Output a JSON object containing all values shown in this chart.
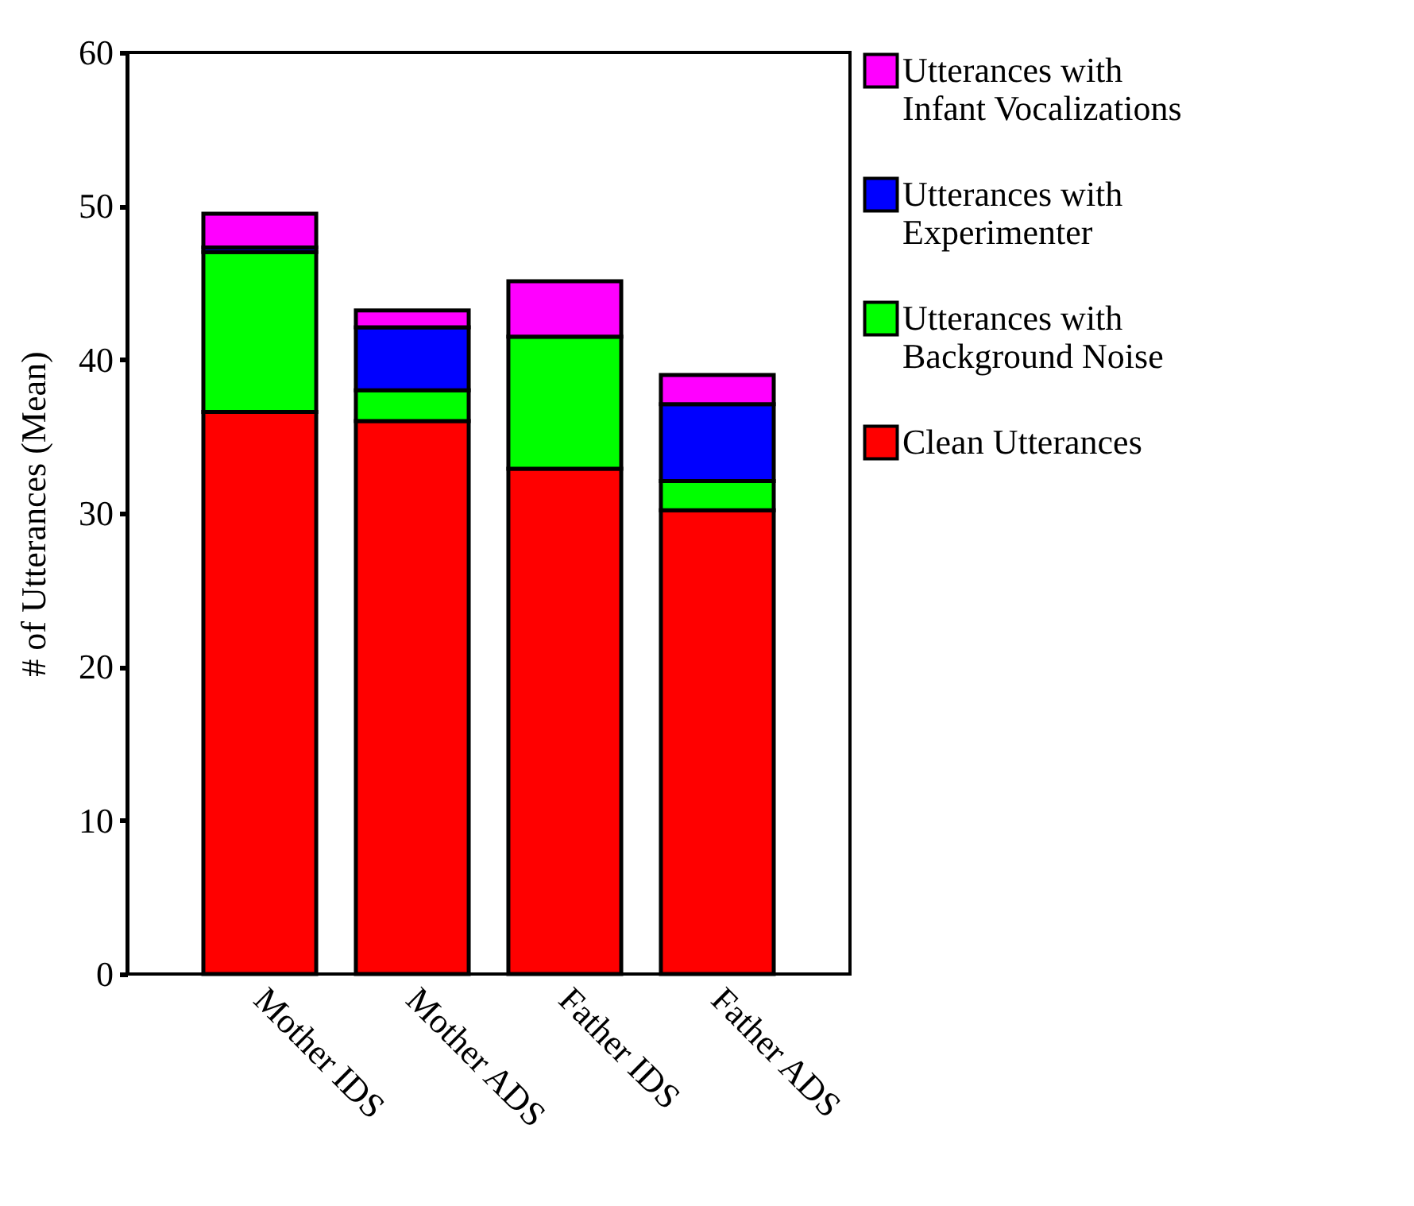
{
  "chart_data": {
    "type": "bar",
    "stacked": true,
    "ylabel": "# of Utterances (Mean)",
    "categories": [
      "Mother IDS",
      "Mother ADS",
      "Father IDS",
      "Father ADS"
    ],
    "ylim": [
      0,
      60
    ],
    "yticks": [
      0,
      10,
      20,
      30,
      40,
      50,
      60
    ],
    "legend": "right",
    "grid": false,
    "series": [
      {
        "name": "Clean Utterances",
        "color": "#ff0000",
        "values": [
          36.6,
          36.0,
          32.9,
          30.2
        ]
      },
      {
        "name": "Utterances with Background Noise",
        "color": "#00ff00",
        "values": [
          10.4,
          2.0,
          8.6,
          1.9
        ]
      },
      {
        "name": "Utterances with Experimenter",
        "color": "#0000ff",
        "values": [
          0.3,
          4.1,
          0,
          5.0
        ]
      },
      {
        "name": "Utterances with Infant Vocalizations",
        "color": "#ff00ff",
        "values": [
          2.2,
          1.1,
          3.6,
          1.9
        ]
      }
    ]
  }
}
